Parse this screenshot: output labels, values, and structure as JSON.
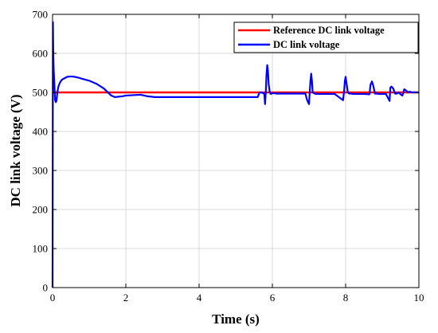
{
  "chart_data": {
    "type": "line",
    "xlabel": "Time (s)",
    "ylabel": "DC link voltage (V)",
    "xlim": [
      0,
      10
    ],
    "ylim": [
      0,
      700
    ],
    "xticks": [
      0,
      2,
      4,
      6,
      8,
      10
    ],
    "yticks": [
      0,
      100,
      200,
      300,
      400,
      500,
      600,
      700
    ],
    "grid": true,
    "legend_position": "top-right",
    "series": [
      {
        "name": "Reference DC link voltage",
        "color": "#ff0000",
        "x": [
          0,
          10
        ],
        "y": [
          500,
          500
        ]
      },
      {
        "name": "DC link voltage",
        "color": "#0000ff",
        "x": [
          0,
          0.01,
          0.02,
          0.03,
          0.05,
          0.07,
          0.09,
          0.11,
          0.13,
          0.16,
          0.2,
          0.25,
          0.3,
          0.4,
          0.5,
          0.6,
          0.7,
          0.8,
          1.0,
          1.2,
          1.4,
          1.6,
          1.7,
          1.8,
          1.9,
          2.0,
          2.2,
          2.4,
          2.6,
          2.8,
          3.0,
          4.0,
          5.0,
          5.6,
          5.65,
          5.7,
          5.75,
          5.78,
          5.8,
          5.82,
          5.84,
          5.86,
          5.88,
          5.9,
          5.93,
          5.96,
          6.0,
          6.05,
          6.1,
          6.5,
          6.9,
          6.95,
          7.0,
          7.02,
          7.04,
          7.06,
          7.08,
          7.1,
          7.15,
          7.2,
          7.3,
          7.7,
          7.93,
          7.96,
          7.98,
          8.0,
          8.03,
          8.06,
          8.1,
          8.15,
          8.2,
          8.5,
          8.65,
          8.68,
          8.72,
          8.76,
          8.8,
          8.85,
          8.9,
          9.1,
          9.2,
          9.22,
          9.25,
          9.3,
          9.35,
          9.4,
          9.45,
          9.5,
          9.55,
          9.6,
          9.65,
          9.7,
          9.75,
          9.8,
          10.0
        ],
        "y": [
          0,
          680,
          600,
          560,
          520,
          480,
          475,
          480,
          500,
          515,
          525,
          532,
          535,
          540,
          541,
          540,
          538,
          535,
          530,
          522,
          510,
          492,
          488,
          489,
          490,
          492,
          493,
          494,
          490,
          488,
          488,
          488,
          488,
          488,
          500,
          500,
          498,
          496,
          470,
          500,
          545,
          570,
          555,
          520,
          500,
          496,
          498,
          498,
          497,
          497,
          497,
          480,
          470,
          500,
          530,
          548,
          530,
          500,
          497,
          496,
          496,
          496,
          480,
          505,
          530,
          540,
          520,
          500,
          497,
          497,
          496,
          496,
          495,
          520,
          528,
          515,
          497,
          497,
          496,
          496,
          478,
          512,
          515,
          510,
          497,
          497,
          500,
          495,
          492,
          508,
          505,
          500,
          502,
          500,
          500
        ]
      }
    ]
  }
}
